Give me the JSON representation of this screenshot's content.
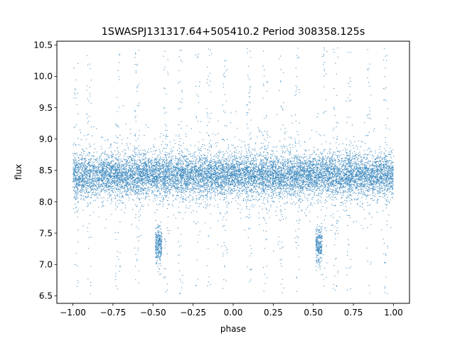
{
  "chart_data": {
    "type": "scatter",
    "title": "1SWASPJ131317.64+505410.2 Period 308358.125s",
    "xlabel": "phase",
    "ylabel": "flux",
    "xlim": [
      -1.1,
      1.1
    ],
    "ylim": [
      6.38,
      10.56
    ],
    "x_ticks": [
      -1.0,
      -0.75,
      -0.5,
      -0.25,
      0.0,
      0.25,
      0.5,
      0.75,
      1.0
    ],
    "x_tick_labels": [
      "−1.00",
      "−0.75",
      "−0.50",
      "−0.25",
      "0.00",
      "0.25",
      "0.50",
      "0.75",
      "1.00"
    ],
    "y_ticks": [
      6.5,
      7.0,
      7.5,
      8.0,
      8.5,
      9.0,
      9.5,
      10.0,
      10.5
    ],
    "y_tick_labels": [
      "6.5",
      "7.0",
      "7.5",
      "8.0",
      "8.5",
      "9.0",
      "9.5",
      "10.0",
      "10.5"
    ],
    "grid": false,
    "legend": "none",
    "series": [
      {
        "color": "#1f77b4",
        "marker_size": 0.6,
        "point_count": 13000,
        "baseline_flux": 8.42,
        "baseline_scatter": 0.16,
        "x_range": [
          -1.0,
          1.0
        ],
        "dips": [
          {
            "phase": -0.465,
            "width": 0.04,
            "flux": 7.3,
            "scatter": 0.15
          },
          {
            "phase": 0.535,
            "width": 0.04,
            "flux": 7.3,
            "scatter": 0.15
          }
        ],
        "outlier_columns": [
          -0.98,
          -0.9,
          -0.72,
          -0.6,
          -0.42,
          -0.33,
          -0.22,
          -0.15,
          -0.05,
          0.1,
          0.2,
          0.3,
          0.4,
          0.57,
          0.64,
          0.72,
          0.85,
          0.95
        ]
      }
    ]
  }
}
